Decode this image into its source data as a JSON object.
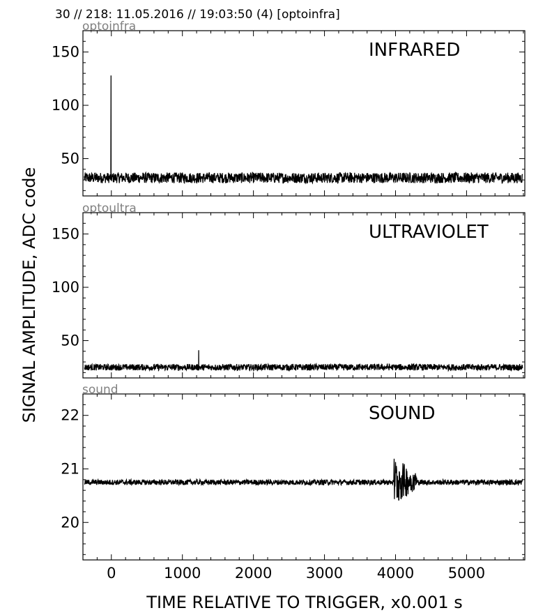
{
  "header": "30 // 218:   11.05.2016 // 19:03:50 (4)  [optoinfra]",
  "ylabel": "SIGNAL AMPLITUDE,  ADC code",
  "xlabel": "TIME RELATIVE TO TRIGGER,   x0.001 s",
  "colors": {
    "trace": "#000000",
    "source_label": "#808080",
    "axes": "#000000"
  },
  "chart_data": [
    {
      "type": "line",
      "source": "optoinfra",
      "title": "INFRARED",
      "xlim": [
        -400,
        5820
      ],
      "ylim": [
        15,
        170
      ],
      "xticks": [
        0,
        1000,
        2000,
        3000,
        4000,
        5000
      ],
      "yticks": [
        50,
        100,
        150
      ],
      "baseline": 32,
      "noise": 5,
      "spikes": [
        {
          "x": -5,
          "y": 128
        }
      ],
      "grid": false
    },
    {
      "type": "line",
      "source": "optoultra",
      "title": "ULTRAVIOLET",
      "xlim": [
        -400,
        5820
      ],
      "ylim": [
        15,
        170
      ],
      "xticks": [
        0,
        1000,
        2000,
        3000,
        4000,
        5000
      ],
      "yticks": [
        50,
        100,
        150
      ],
      "baseline": 25,
      "noise": 3,
      "spikes": [
        {
          "x": 1230,
          "y": 41
        }
      ],
      "grid": false
    },
    {
      "type": "line",
      "source": "sound",
      "title": "SOUND",
      "xlim": [
        -400,
        5820
      ],
      "ylim": [
        19.3,
        22.4
      ],
      "xticks": [
        0,
        1000,
        2000,
        3000,
        4000,
        5000
      ],
      "yticks": [
        20,
        21,
        22
      ],
      "baseline": 20.75,
      "noise": 0.05,
      "burst": {
        "x_start": 3980,
        "x_end": 4300,
        "ymin": 20.3,
        "ymax": 21.25
      },
      "grid": false
    }
  ]
}
